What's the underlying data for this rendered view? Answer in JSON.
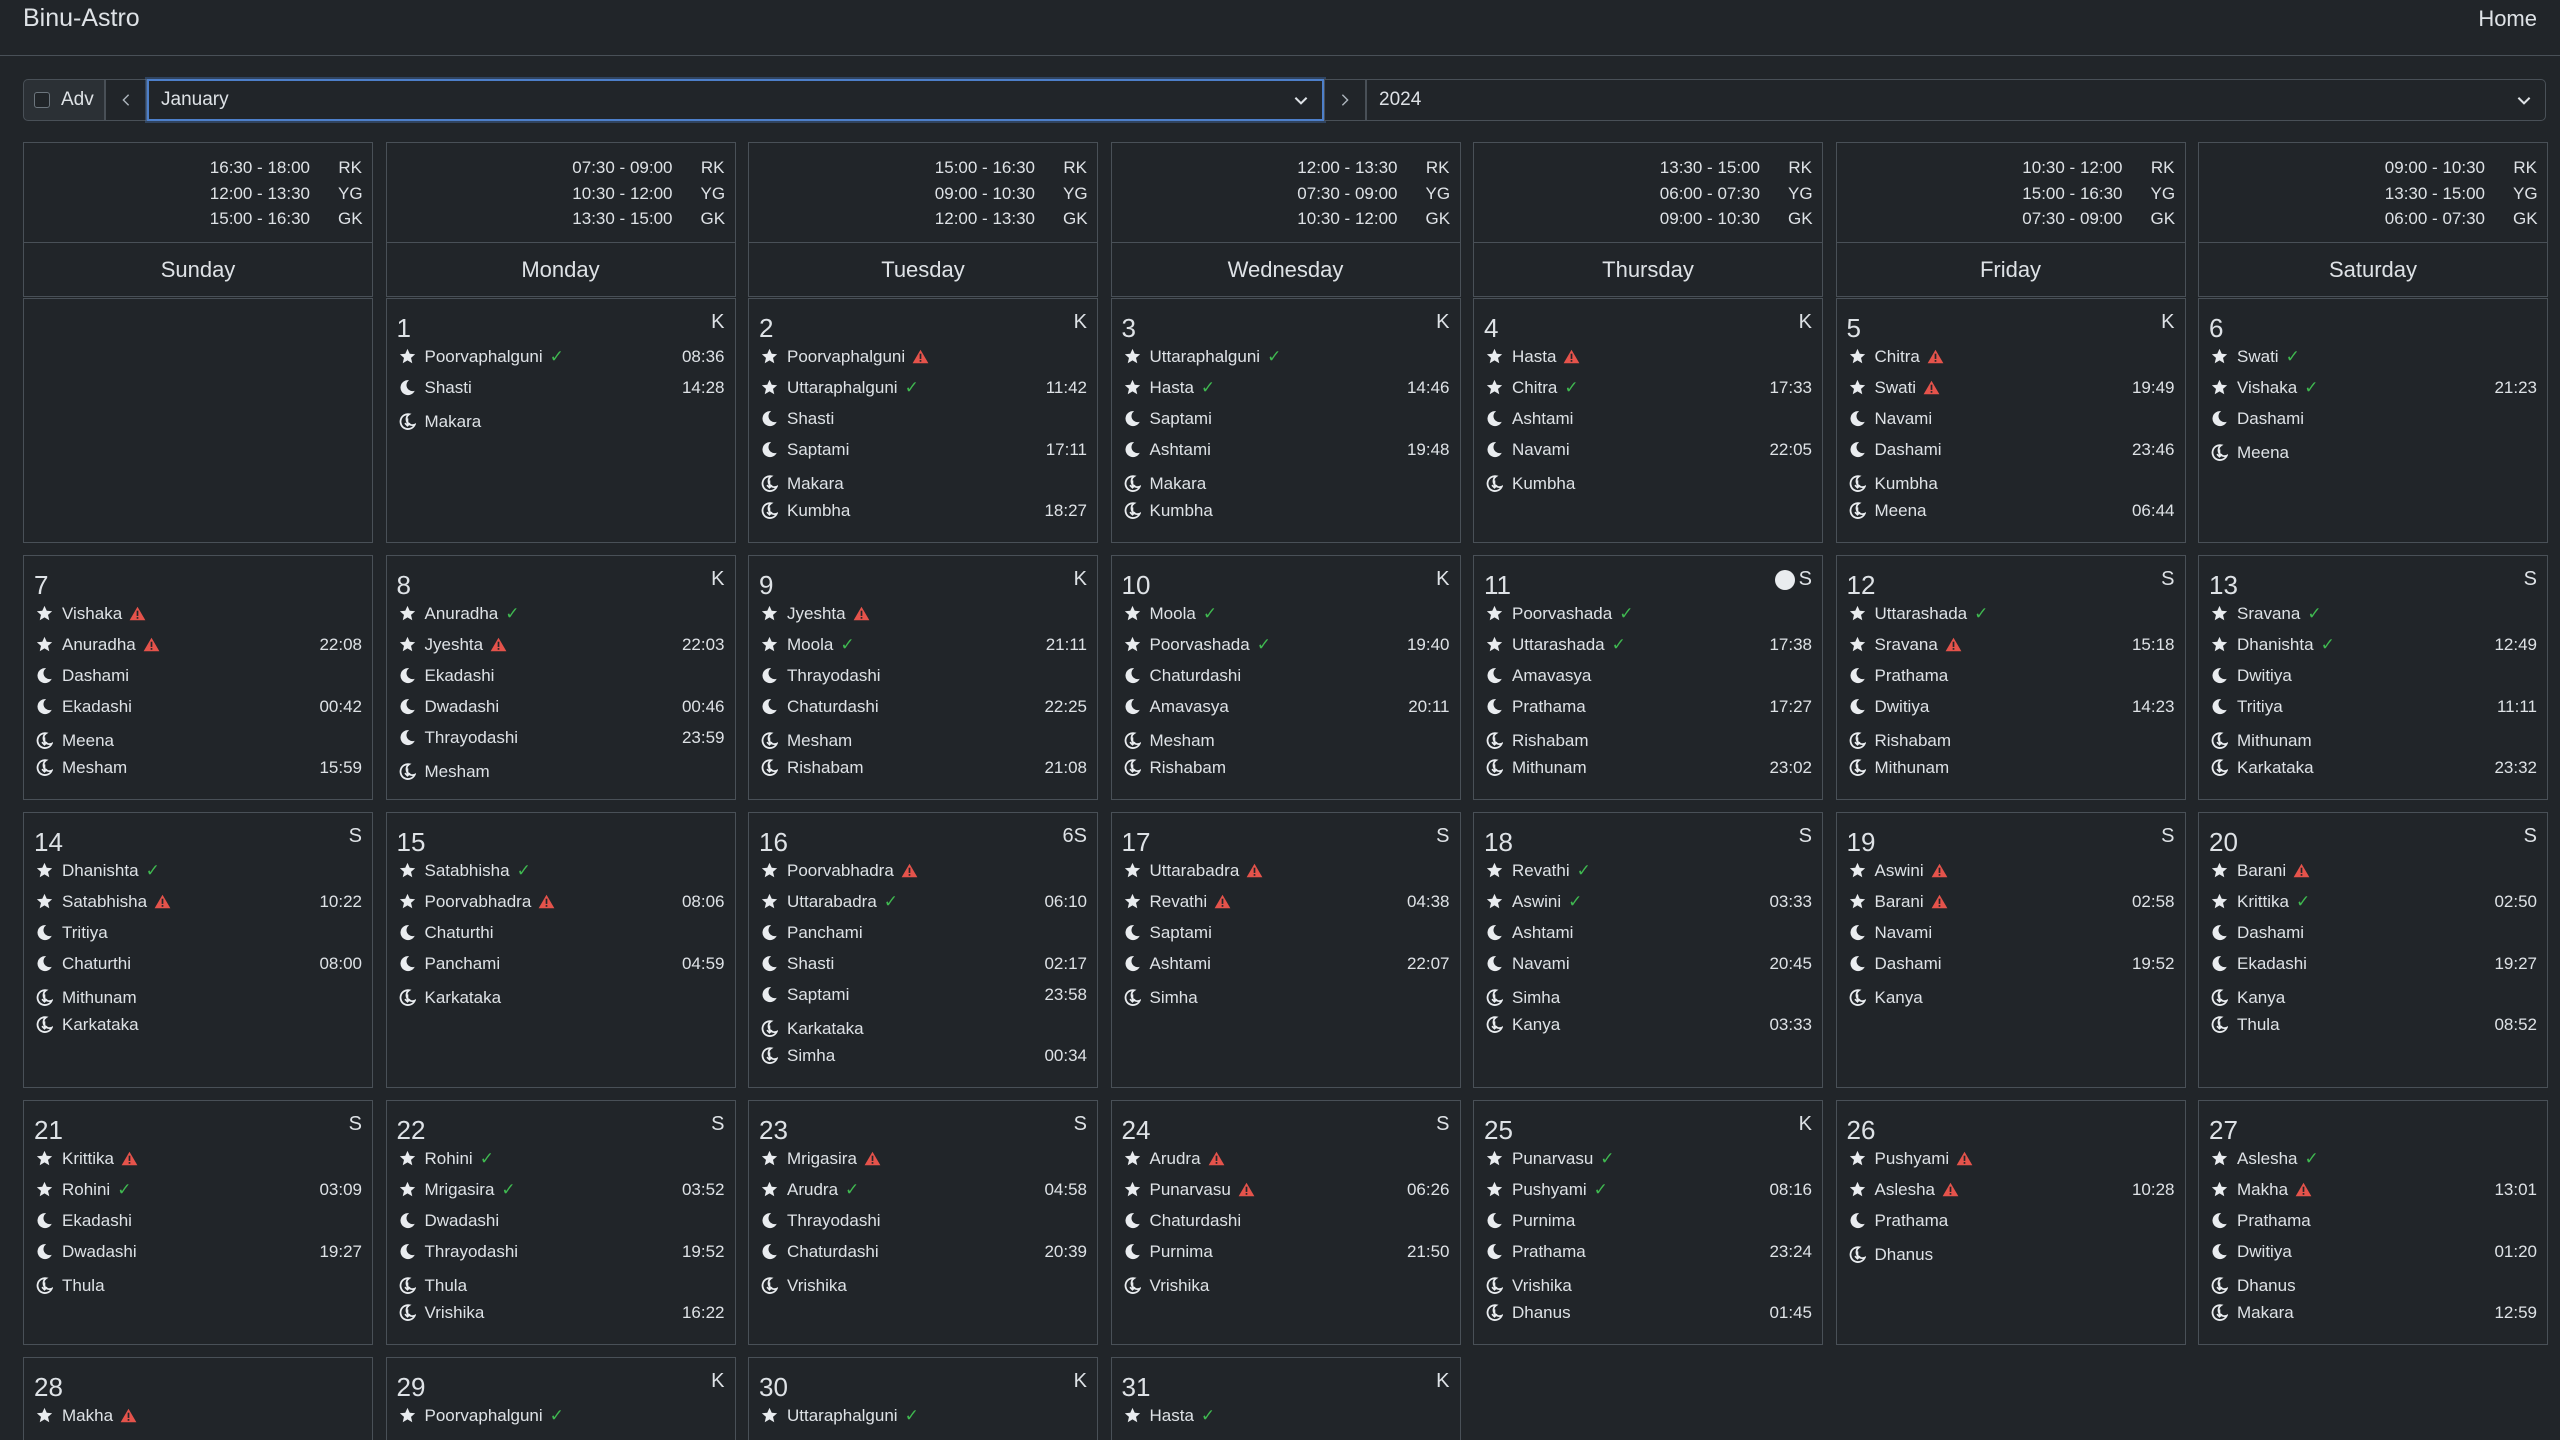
{
  "app": {
    "brand": "Binu-Astro",
    "home_label": "Home"
  },
  "controls": {
    "adv_label": "Adv",
    "month": "January",
    "year": "2024"
  },
  "timing_keys": [
    "RK",
    "YG",
    "GK"
  ],
  "weekdays": [
    {
      "name": "Sunday",
      "times": [
        "16:30 - 18:00",
        "12:00 - 13:30",
        "15:00 - 16:30"
      ]
    },
    {
      "name": "Monday",
      "times": [
        "07:30 - 09:00",
        "10:30 - 12:00",
        "13:30 - 15:00"
      ]
    },
    {
      "name": "Tuesday",
      "times": [
        "15:00 - 16:30",
        "09:00 - 10:30",
        "12:00 - 13:30"
      ]
    },
    {
      "name": "Wednesday",
      "times": [
        "12:00 - 13:30",
        "07:30 - 09:00",
        "10:30 - 12:00"
      ]
    },
    {
      "name": "Thursday",
      "times": [
        "13:30 - 15:00",
        "06:00 - 07:30",
        "09:00 - 10:30"
      ]
    },
    {
      "name": "Friday",
      "times": [
        "10:30 - 12:00",
        "15:00 - 16:30",
        "07:30 - 09:00"
      ]
    },
    {
      "name": "Saturday",
      "times": [
        "09:00 - 10:30",
        "13:30 - 15:00",
        "06:00 - 07:30"
      ]
    }
  ],
  "days": [
    {
      "d": "1",
      "tag": "K",
      "n": [
        [
          "Poorvaphalguni",
          "ok",
          "08:36"
        ]
      ],
      "t": [
        [
          "Shasti",
          "14:28"
        ]
      ],
      "r": [
        [
          "Makara",
          ""
        ]
      ]
    },
    {
      "d": "2",
      "tag": "K",
      "n": [
        [
          "Poorvaphalguni",
          "warn",
          ""
        ],
        [
          "Uttaraphalguni",
          "ok",
          "11:42"
        ]
      ],
      "t": [
        [
          "Shasti",
          ""
        ],
        [
          "Saptami",
          "17:11"
        ]
      ],
      "r": [
        [
          "Makara",
          ""
        ],
        [
          "Kumbha",
          "18:27"
        ]
      ]
    },
    {
      "d": "3",
      "tag": "K",
      "n": [
        [
          "Uttaraphalguni",
          "ok",
          ""
        ],
        [
          "Hasta",
          "ok",
          "14:46"
        ]
      ],
      "t": [
        [
          "Saptami",
          ""
        ],
        [
          "Ashtami",
          "19:48"
        ]
      ],
      "r": [
        [
          "Makara",
          ""
        ],
        [
          "Kumbha",
          ""
        ]
      ]
    },
    {
      "d": "4",
      "tag": "K",
      "n": [
        [
          "Hasta",
          "warn",
          ""
        ],
        [
          "Chitra",
          "ok",
          "17:33"
        ]
      ],
      "t": [
        [
          "Ashtami",
          ""
        ],
        [
          "Navami",
          "22:05"
        ]
      ],
      "r": [
        [
          "Kumbha",
          ""
        ]
      ]
    },
    {
      "d": "5",
      "tag": "K",
      "n": [
        [
          "Chitra",
          "warn",
          ""
        ],
        [
          "Swati",
          "warn",
          "19:49"
        ]
      ],
      "t": [
        [
          "Navami",
          ""
        ],
        [
          "Dashami",
          "23:46"
        ]
      ],
      "r": [
        [
          "Kumbha",
          ""
        ],
        [
          "Meena",
          "06:44"
        ]
      ]
    },
    {
      "d": "6",
      "tag": "",
      "n": [
        [
          "Swati",
          "ok",
          ""
        ],
        [
          "Vishaka",
          "ok",
          "21:23"
        ]
      ],
      "t": [
        [
          "Dashami",
          ""
        ]
      ],
      "r": [
        [
          "Meena",
          ""
        ]
      ]
    },
    {
      "d": "7",
      "tag": "",
      "n": [
        [
          "Vishaka",
          "warn",
          ""
        ],
        [
          "Anuradha",
          "warn",
          "22:08"
        ]
      ],
      "t": [
        [
          "Dashami",
          ""
        ],
        [
          "Ekadashi",
          "00:42"
        ]
      ],
      "r": [
        [
          "Meena",
          ""
        ],
        [
          "Mesham",
          "15:59"
        ]
      ]
    },
    {
      "d": "8",
      "tag": "K",
      "n": [
        [
          "Anuradha",
          "ok",
          ""
        ],
        [
          "Jyeshta",
          "warn",
          "22:03"
        ]
      ],
      "t": [
        [
          "Ekadashi",
          ""
        ],
        [
          "Dwadashi",
          "00:46"
        ],
        [
          "Thrayodashi",
          "23:59"
        ]
      ],
      "r": [
        [
          "Mesham",
          ""
        ]
      ]
    },
    {
      "d": "9",
      "tag": "K",
      "n": [
        [
          "Jyeshta",
          "warn",
          ""
        ],
        [
          "Moola",
          "ok",
          "21:11"
        ]
      ],
      "t": [
        [
          "Thrayodashi",
          ""
        ],
        [
          "Chaturdashi",
          "22:25"
        ]
      ],
      "r": [
        [
          "Mesham",
          ""
        ],
        [
          "Rishabam",
          "21:08"
        ]
      ]
    },
    {
      "d": "10",
      "tag": "K",
      "n": [
        [
          "Moola",
          "ok",
          ""
        ],
        [
          "Poorvashada",
          "ok",
          "19:40"
        ]
      ],
      "t": [
        [
          "Chaturdashi",
          ""
        ],
        [
          "Amavasya",
          "20:11"
        ]
      ],
      "r": [
        [
          "Mesham",
          ""
        ],
        [
          "Rishabam",
          ""
        ]
      ]
    },
    {
      "d": "11",
      "tag": "S",
      "dot": true,
      "n": [
        [
          "Poorvashada",
          "ok",
          ""
        ],
        [
          "Uttarashada",
          "ok",
          "17:38"
        ]
      ],
      "t": [
        [
          "Amavasya",
          ""
        ],
        [
          "Prathama",
          "17:27"
        ]
      ],
      "r": [
        [
          "Rishabam",
          ""
        ],
        [
          "Mithunam",
          "23:02"
        ]
      ]
    },
    {
      "d": "12",
      "tag": "S",
      "n": [
        [
          "Uttarashada",
          "ok",
          ""
        ],
        [
          "Sravana",
          "warn",
          "15:18"
        ]
      ],
      "t": [
        [
          "Prathama",
          ""
        ],
        [
          "Dwitiya",
          "14:23"
        ]
      ],
      "r": [
        [
          "Rishabam",
          ""
        ],
        [
          "Mithunam",
          ""
        ]
      ]
    },
    {
      "d": "13",
      "tag": "S",
      "n": [
        [
          "Sravana",
          "ok",
          ""
        ],
        [
          "Dhanishta",
          "ok",
          "12:49"
        ]
      ],
      "t": [
        [
          "Dwitiya",
          ""
        ],
        [
          "Tritiya",
          "11:11"
        ]
      ],
      "r": [
        [
          "Mithunam",
          ""
        ],
        [
          "Karkataka",
          "23:32"
        ]
      ]
    },
    {
      "d": "14",
      "tag": "S",
      "n": [
        [
          "Dhanishta",
          "ok",
          ""
        ],
        [
          "Satabhisha",
          "warn",
          "10:22"
        ]
      ],
      "t": [
        [
          "Tritiya",
          ""
        ],
        [
          "Chaturthi",
          "08:00"
        ]
      ],
      "r": [
        [
          "Mithunam",
          ""
        ],
        [
          "Karkataka",
          ""
        ]
      ]
    },
    {
      "d": "15",
      "tag": "",
      "n": [
        [
          "Satabhisha",
          "ok",
          ""
        ],
        [
          "Poorvabhadra",
          "warn",
          "08:06"
        ]
      ],
      "t": [
        [
          "Chaturthi",
          ""
        ],
        [
          "Panchami",
          "04:59"
        ]
      ],
      "r": [
        [
          "Karkataka",
          ""
        ]
      ]
    },
    {
      "d": "16",
      "tag": "6S",
      "n": [
        [
          "Poorvabhadra",
          "warn",
          ""
        ],
        [
          "Uttarabadra",
          "ok",
          "06:10"
        ]
      ],
      "t": [
        [
          "Panchami",
          ""
        ],
        [
          "Shasti",
          "02:17"
        ],
        [
          "Saptami",
          "23:58"
        ]
      ],
      "r": [
        [
          "Karkataka",
          ""
        ],
        [
          "Simha",
          "00:34"
        ]
      ]
    },
    {
      "d": "17",
      "tag": "S",
      "n": [
        [
          "Uttarabadra",
          "warn",
          ""
        ],
        [
          "Revathi",
          "warn",
          "04:38"
        ]
      ],
      "t": [
        [
          "Saptami",
          ""
        ],
        [
          "Ashtami",
          "22:07"
        ]
      ],
      "r": [
        [
          "Simha",
          ""
        ]
      ]
    },
    {
      "d": "18",
      "tag": "S",
      "n": [
        [
          "Revathi",
          "ok",
          ""
        ],
        [
          "Aswini",
          "ok",
          "03:33"
        ]
      ],
      "t": [
        [
          "Ashtami",
          ""
        ],
        [
          "Navami",
          "20:45"
        ]
      ],
      "r": [
        [
          "Simha",
          ""
        ],
        [
          "Kanya",
          "03:33"
        ]
      ]
    },
    {
      "d": "19",
      "tag": "S",
      "n": [
        [
          "Aswini",
          "warn",
          ""
        ],
        [
          "Barani",
          "warn",
          "02:58"
        ]
      ],
      "t": [
        [
          "Navami",
          ""
        ],
        [
          "Dashami",
          "19:52"
        ]
      ],
      "r": [
        [
          "Kanya",
          ""
        ]
      ]
    },
    {
      "d": "20",
      "tag": "S",
      "n": [
        [
          "Barani",
          "warn",
          ""
        ],
        [
          "Krittika",
          "ok",
          "02:50"
        ]
      ],
      "t": [
        [
          "Dashami",
          ""
        ],
        [
          "Ekadashi",
          "19:27"
        ]
      ],
      "r": [
        [
          "Kanya",
          ""
        ],
        [
          "Thula",
          "08:52"
        ]
      ]
    },
    {
      "d": "21",
      "tag": "S",
      "n": [
        [
          "Krittika",
          "warn",
          ""
        ],
        [
          "Rohini",
          "ok",
          "03:09"
        ]
      ],
      "t": [
        [
          "Ekadashi",
          ""
        ],
        [
          "Dwadashi",
          "19:27"
        ]
      ],
      "r": [
        [
          "Thula",
          ""
        ]
      ]
    },
    {
      "d": "22",
      "tag": "S",
      "n": [
        [
          "Rohini",
          "ok",
          ""
        ],
        [
          "Mrigasira",
          "ok",
          "03:52"
        ]
      ],
      "t": [
        [
          "Dwadashi",
          ""
        ],
        [
          "Thrayodashi",
          "19:52"
        ]
      ],
      "r": [
        [
          "Thula",
          ""
        ],
        [
          "Vrishika",
          "16:22"
        ]
      ]
    },
    {
      "d": "23",
      "tag": "S",
      "n": [
        [
          "Mrigasira",
          "warn",
          ""
        ],
        [
          "Arudra",
          "ok",
          "04:58"
        ]
      ],
      "t": [
        [
          "Thrayodashi",
          ""
        ],
        [
          "Chaturdashi",
          "20:39"
        ]
      ],
      "r": [
        [
          "Vrishika",
          ""
        ]
      ]
    },
    {
      "d": "24",
      "tag": "S",
      "n": [
        [
          "Arudra",
          "warn",
          ""
        ],
        [
          "Punarvasu",
          "warn",
          "06:26"
        ]
      ],
      "t": [
        [
          "Chaturdashi",
          ""
        ],
        [
          "Purnima",
          "21:50"
        ]
      ],
      "r": [
        [
          "Vrishika",
          ""
        ]
      ]
    },
    {
      "d": "25",
      "tag": "K",
      "n": [
        [
          "Punarvasu",
          "ok",
          ""
        ],
        [
          "Pushyami",
          "ok",
          "08:16"
        ]
      ],
      "t": [
        [
          "Purnima",
          ""
        ],
        [
          "Prathama",
          "23:24"
        ]
      ],
      "r": [
        [
          "Vrishika",
          ""
        ],
        [
          "Dhanus",
          "01:45"
        ]
      ]
    },
    {
      "d": "26",
      "tag": "",
      "n": [
        [
          "Pushyami",
          "warn",
          ""
        ],
        [
          "Aslesha",
          "warn",
          "10:28"
        ]
      ],
      "t": [
        [
          "Prathama",
          ""
        ]
      ],
      "r": [
        [
          "Dhanus",
          ""
        ]
      ]
    },
    {
      "d": "27",
      "tag": "",
      "n": [
        [
          "Aslesha",
          "ok",
          ""
        ],
        [
          "Makha",
          "warn",
          "13:01"
        ]
      ],
      "t": [
        [
          "Prathama",
          ""
        ],
        [
          "Dwitiya",
          "01:20"
        ]
      ],
      "r": [
        [
          "Dhanus",
          ""
        ],
        [
          "Makara",
          "12:59"
        ]
      ]
    },
    {
      "d": "28",
      "tag": "",
      "n": [
        [
          "Makha",
          "warn",
          ""
        ]
      ],
      "t": [],
      "r": []
    },
    {
      "d": "29",
      "tag": "K",
      "n": [
        [
          "Poorvaphalguni",
          "ok",
          ""
        ]
      ],
      "t": [],
      "r": []
    },
    {
      "d": "30",
      "tag": "K",
      "n": [
        [
          "Uttaraphalguni",
          "ok",
          ""
        ]
      ],
      "t": [],
      "r": []
    },
    {
      "d": "31",
      "tag": "K",
      "n": [
        [
          "Hasta",
          "ok",
          ""
        ]
      ],
      "t": [],
      "r": []
    }
  ],
  "colors": {
    "ok": "#3fb950",
    "warn": "#e5534b",
    "accent": "#4d7fc9"
  }
}
